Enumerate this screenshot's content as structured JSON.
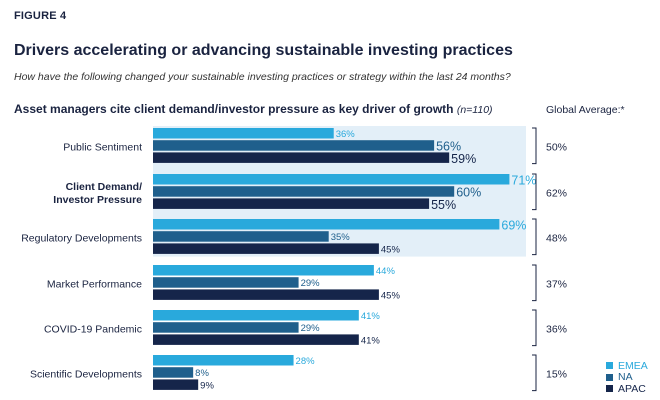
{
  "figure_label": "FIGURE 4",
  "title": "Drivers accelerating or advancing sustainable investing practices",
  "subtitle": "How have the following changed your sustainable investing practices or strategy within the last 24 months?",
  "chart_heading": "Asset managers cite client demand/investor pressure as key driver of growth",
  "chart_heading_n": "(n=110)",
  "global_average_label": "Global Average:*",
  "colors": {
    "EMEA": "#29a9dc",
    "NA": "#1f5f8c",
    "APAC": "#15254a",
    "highlight": "#e3eff8"
  },
  "legend": [
    {
      "name": "EMEA",
      "color": "#29a9dc"
    },
    {
      "name": "NA",
      "color": "#1f5f8c"
    },
    {
      "name": "APAC",
      "color": "#15254a"
    }
  ],
  "chart_data": {
    "type": "bar",
    "orientation": "horizontal",
    "title": "Asset managers cite client demand/investor pressure as key driver of growth",
    "categories": [
      "Public Sentiment",
      "Client Demand/ Investor Pressure",
      "Regulatory Developments",
      "Market Performance",
      "COVID-19 Pandemic",
      "Scientific Developments"
    ],
    "category_lines": [
      [
        "Public Sentiment"
      ],
      [
        "Client Demand/",
        "Investor Pressure"
      ],
      [
        "Regulatory Developments"
      ],
      [
        "Market Performance"
      ],
      [
        "COVID-19 Pandemic"
      ],
      [
        "Scientific Developments"
      ]
    ],
    "bold_category_index": 1,
    "highlighted_categories": [
      0,
      1,
      2
    ],
    "series": [
      {
        "name": "EMEA",
        "values": [
          36,
          71,
          69,
          44,
          41,
          28
        ]
      },
      {
        "name": "NA",
        "values": [
          56,
          60,
          35,
          29,
          29,
          8
        ]
      },
      {
        "name": "APAC",
        "values": [
          59,
          55,
          45,
          45,
          41,
          9
        ]
      }
    ],
    "value_labels": [
      [
        "36%",
        "56%",
        "59%"
      ],
      [
        "71%",
        "60%",
        "55%"
      ],
      [
        "69%",
        "35%",
        "45%"
      ],
      [
        "44%",
        "29%",
        "45%"
      ],
      [
        "41%",
        "29%",
        "41%"
      ],
      [
        "28%",
        "8%",
        "9%"
      ]
    ],
    "large_labels": [
      [
        false,
        true,
        true
      ],
      [
        true,
        true,
        true
      ],
      [
        true,
        false,
        false
      ],
      [
        false,
        false,
        false
      ],
      [
        false,
        false,
        false
      ],
      [
        false,
        false,
        false
      ]
    ],
    "global_average": [
      "50%",
      "62%",
      "48%",
      "37%",
      "36%",
      "15%"
    ],
    "xlim": [
      0,
      100
    ],
    "grid": false,
    "legend_position": "bottom-right"
  }
}
